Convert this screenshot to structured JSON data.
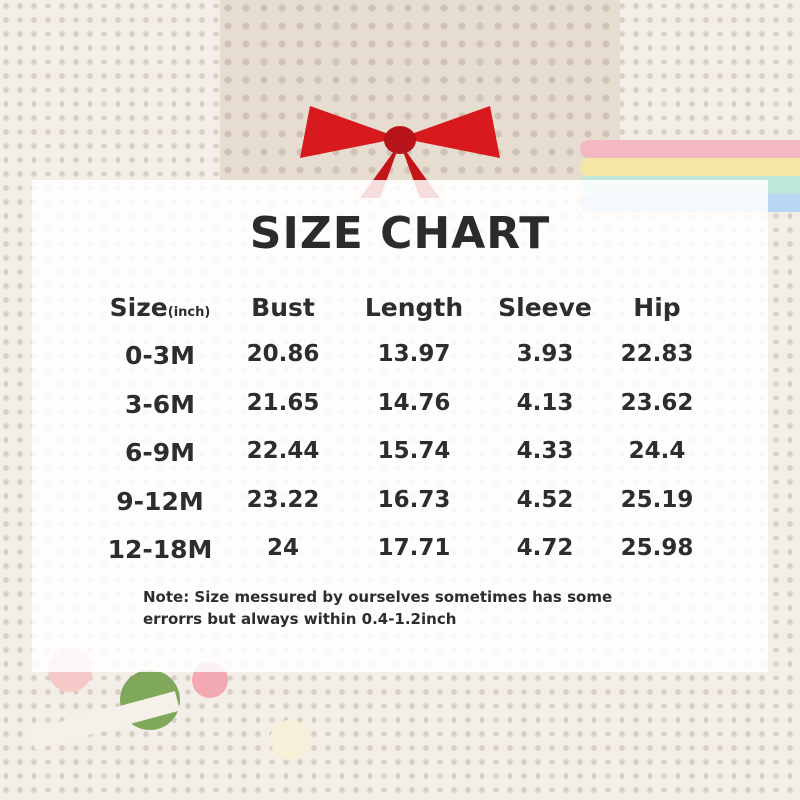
{
  "title": "SIZE CHART",
  "table": {
    "headers": [
      {
        "label": "Size",
        "unit": "(inch)"
      },
      {
        "label": "Bust"
      },
      {
        "label": "Length"
      },
      {
        "label": "Sleeve"
      },
      {
        "label": "Hip"
      }
    ],
    "rows": [
      [
        "0-3M",
        "20.86",
        "13.97",
        "3.93",
        "22.83"
      ],
      [
        "3-6M",
        "21.65",
        "14.76",
        "4.13",
        "23.62"
      ],
      [
        "6-9M",
        "22.44",
        "15.74",
        "4.33",
        "24.4"
      ],
      [
        "9-12M",
        "23.22",
        "16.73",
        "4.52",
        "25.19"
      ],
      [
        "12-18M",
        "24",
        "17.71",
        "4.72",
        "25.98"
      ]
    ]
  },
  "note": {
    "line1": "Note:  Size messured by ourselves sometimes has some",
    "line2": "errorrs but always within 0.4-1.2inch"
  },
  "colors": {
    "text": "#2d2d2d",
    "bow": "#d81a1f",
    "panel": "#ffffff"
  }
}
